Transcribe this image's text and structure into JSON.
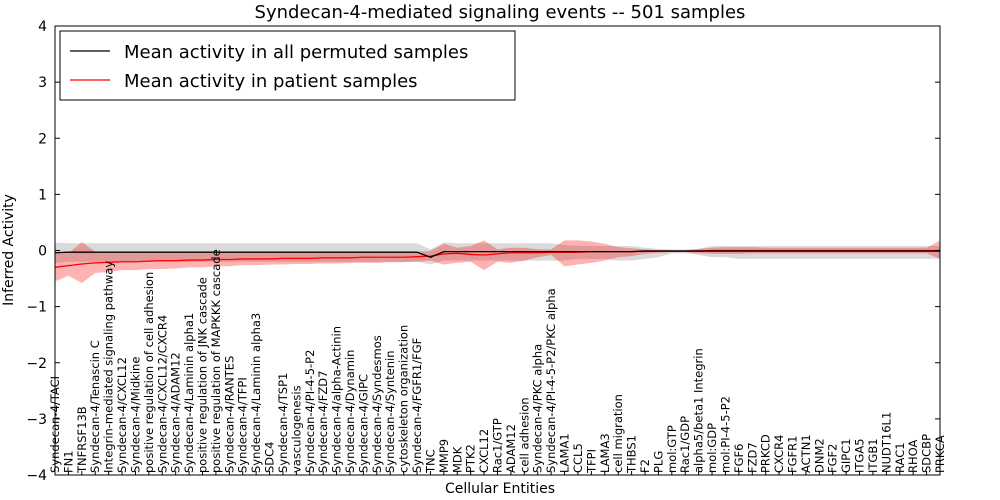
{
  "chart_data": {
    "type": "line",
    "title": "Syndecan-4-mediated signaling events -- 501 samples",
    "xlabel": "Cellular Entities",
    "ylabel": "Inferred Activity",
    "ylim": [
      -4,
      4
    ],
    "yticks": [
      -4,
      -3,
      -2,
      -1,
      0,
      1,
      2,
      3,
      4
    ],
    "ytick_labels": [
      "−4",
      "−3",
      "−2",
      "−1",
      "0",
      "1",
      "2",
      "3",
      "4"
    ],
    "grid": false,
    "legend_position": "top-left",
    "categories": [
      "Syndecan-4/TACI",
      "FN1",
      "TNFRSF13B",
      "Syndecan-4/Tenascin C",
      "Integrin-mediated signaling pathway",
      "Syndecan-4/CXCL12",
      "Syndecan-4/Midkine",
      "positive regulation of cell adhesion",
      "Syndecan-4/CXCL12/CXCR4",
      "Syndecan-4/ADAM12",
      "Syndecan-4/Laminin alpha1",
      "positive regulation of JNK cascade",
      "positive regulation of MAPKKK cascade",
      "Syndecan-4/RANTES",
      "Syndecan-4/TFPI",
      "Syndecan-4/Laminin alpha3",
      "SDC4",
      "Syndecan-4/TSP1",
      "vasculogenesis",
      "Syndecan-4/PI-4-5-P2",
      "Syndecan-4/FZD7",
      "Syndecan-4/alpha-Actinin",
      "Syndecan-4/Dynamin",
      "Syndecan-4/GIPC",
      "Syndecan-4/Syndesmos",
      "Syndecan-4/Syntenin",
      "cytoskeleton organization",
      "Syndecan-4/FGFR1/FGF",
      "TNC",
      "MMP9",
      "MDK",
      "PTK2",
      "CXCL12",
      "Rac1/GTP",
      "ADAM12",
      "cell adhesion",
      "Syndecan-4/PKC alpha",
      "Syndecan-4/PI-4-5-P2/PKC alpha",
      "LAMA1",
      "CCL5",
      "TFPI",
      "LAMA3",
      "cell migration",
      "THBS1",
      "F2",
      "PLG",
      "mol:GTP",
      "Rac1/GDP",
      "alpha5/beta1 Integrin",
      "mol:GDP",
      "mol:PI-4-5-P2",
      "FGF6",
      "FZD7",
      "PRKCD",
      "CXCR4",
      "FGFR1",
      "ACTN1",
      "DNM2",
      "FGF2",
      "GIPC1",
      "ITGA5",
      "ITGB1",
      "NUDT16L1",
      "RAC1",
      "RHOA",
      "SDCBP",
      "PRKCA"
    ],
    "series": [
      {
        "name": "Mean activity in all permuted samples",
        "color": "#000000",
        "values": [
          -0.04,
          -0.03,
          -0.03,
          -0.03,
          -0.03,
          -0.03,
          -0.03,
          -0.03,
          -0.03,
          -0.03,
          -0.03,
          -0.03,
          -0.03,
          -0.03,
          -0.03,
          -0.03,
          -0.03,
          -0.03,
          -0.03,
          -0.03,
          -0.03,
          -0.03,
          -0.03,
          -0.03,
          -0.03,
          -0.03,
          -0.03,
          -0.03,
          -0.12,
          -0.02,
          -0.02,
          -0.02,
          -0.02,
          -0.02,
          -0.02,
          -0.02,
          -0.02,
          -0.02,
          -0.02,
          -0.02,
          -0.02,
          -0.02,
          -0.02,
          -0.02,
          -0.01,
          -0.01,
          -0.01,
          -0.01,
          -0.01,
          -0.01,
          -0.01,
          -0.01,
          -0.01,
          -0.01,
          -0.01,
          -0.01,
          -0.01,
          -0.01,
          -0.01,
          -0.01,
          -0.01,
          -0.01,
          -0.01,
          -0.01,
          -0.01,
          -0.01,
          -0.01
        ],
        "band_low": [
          -0.22,
          -0.2,
          -0.2,
          -0.2,
          -0.2,
          -0.2,
          -0.2,
          -0.2,
          -0.2,
          -0.2,
          -0.2,
          -0.2,
          -0.2,
          -0.2,
          -0.2,
          -0.2,
          -0.2,
          -0.2,
          -0.2,
          -0.2,
          -0.2,
          -0.2,
          -0.2,
          -0.2,
          -0.2,
          -0.2,
          -0.2,
          -0.2,
          -0.25,
          -0.18,
          -0.18,
          -0.18,
          -0.18,
          -0.18,
          -0.18,
          -0.18,
          -0.18,
          -0.18,
          -0.18,
          -0.15,
          -0.15,
          -0.15,
          -0.18,
          -0.18,
          -0.15,
          -0.12,
          -0.05,
          -0.05,
          -0.08,
          -0.12,
          -0.12,
          -0.15,
          -0.15,
          -0.15,
          -0.15,
          -0.15,
          -0.15,
          -0.15,
          -0.15,
          -0.15,
          -0.15,
          -0.15,
          -0.15,
          -0.15,
          -0.15,
          -0.15,
          -0.15
        ],
        "band_high": [
          0.14,
          0.13,
          0.13,
          0.13,
          0.13,
          0.13,
          0.13,
          0.13,
          0.13,
          0.13,
          0.13,
          0.13,
          0.13,
          0.13,
          0.13,
          0.13,
          0.13,
          0.13,
          0.13,
          0.13,
          0.13,
          0.13,
          0.13,
          0.13,
          0.13,
          0.13,
          0.13,
          0.13,
          0.02,
          0.14,
          0.13,
          0.13,
          0.13,
          0.13,
          0.13,
          0.13,
          0.13,
          0.13,
          0.1,
          0.08,
          0.08,
          0.08,
          0.08,
          0.08,
          0.05,
          0.03,
          0.02,
          0.02,
          0.03,
          0.08,
          0.08,
          0.08,
          0.08,
          0.08,
          0.08,
          0.08,
          0.08,
          0.08,
          0.08,
          0.08,
          0.08,
          0.08,
          0.08,
          0.08,
          0.08,
          0.08,
          0.08
        ]
      },
      {
        "name": "Mean activity in patient samples",
        "color": "#ff0000",
        "values": [
          -0.3,
          -0.27,
          -0.24,
          -0.22,
          -0.21,
          -0.2,
          -0.2,
          -0.19,
          -0.18,
          -0.18,
          -0.17,
          -0.17,
          -0.16,
          -0.16,
          -0.15,
          -0.15,
          -0.15,
          -0.14,
          -0.14,
          -0.14,
          -0.13,
          -0.13,
          -0.13,
          -0.12,
          -0.12,
          -0.12,
          -0.12,
          -0.11,
          -0.1,
          -0.06,
          -0.05,
          -0.07,
          -0.08,
          -0.06,
          -0.04,
          -0.04,
          -0.04,
          -0.03,
          -0.03,
          -0.03,
          -0.02,
          -0.02,
          -0.02,
          -0.02,
          -0.01,
          -0.01,
          -0.01,
          -0.01,
          -0.01,
          0,
          0,
          0,
          0,
          0,
          0,
          0,
          0,
          0,
          0,
          0,
          0,
          0,
          0,
          0,
          0,
          0,
          0
        ],
        "band_low": [
          -0.55,
          -0.45,
          -0.58,
          -0.4,
          -0.38,
          -0.35,
          -0.35,
          -0.33,
          -0.33,
          -0.32,
          -0.3,
          -0.3,
          -0.28,
          -0.28,
          -0.26,
          -0.26,
          -0.25,
          -0.25,
          -0.24,
          -0.24,
          -0.23,
          -0.23,
          -0.22,
          -0.22,
          -0.22,
          -0.21,
          -0.21,
          -0.2,
          -0.18,
          -0.25,
          -0.22,
          -0.2,
          -0.35,
          -0.2,
          -0.22,
          -0.18,
          -0.12,
          -0.08,
          -0.28,
          -0.25,
          -0.22,
          -0.18,
          -0.12,
          -0.1,
          -0.06,
          -0.04,
          -0.03,
          -0.03,
          -0.05,
          -0.06,
          -0.06,
          -0.06,
          -0.05,
          -0.05,
          -0.05,
          -0.05,
          -0.05,
          -0.05,
          -0.05,
          -0.05,
          -0.05,
          -0.05,
          -0.05,
          -0.05,
          -0.05,
          -0.05,
          -0.15
        ],
        "band_high": [
          -0.05,
          -0.05,
          0.15,
          -0.02,
          -0.02,
          -0.02,
          -0.02,
          -0.02,
          -0.02,
          -0.02,
          -0.02,
          -0.02,
          -0.02,
          -0.02,
          -0.02,
          -0.02,
          -0.02,
          -0.02,
          -0.02,
          -0.02,
          -0.02,
          -0.02,
          -0.02,
          -0.02,
          -0.02,
          -0.02,
          -0.02,
          -0.02,
          -0.01,
          0.12,
          0.05,
          0.08,
          0.18,
          0.02,
          0.05,
          0.05,
          0.02,
          0.02,
          0.18,
          0.18,
          0.16,
          0.12,
          0.06,
          0.04,
          0.02,
          0.01,
          0,
          0,
          0.03,
          0.05,
          0.06,
          0.06,
          0.06,
          0.05,
          0.05,
          0.05,
          0.05,
          0.05,
          0.05,
          0.05,
          0.05,
          0.05,
          0.05,
          0.05,
          0.05,
          0.05,
          0.18
        ]
      }
    ]
  }
}
